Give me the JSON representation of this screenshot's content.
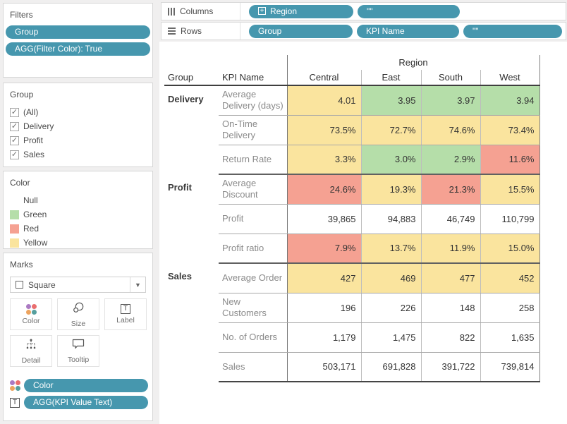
{
  "app": {
    "accent_pill_color": "#4697ae",
    "page_background": "#f0efef"
  },
  "sidebar": {
    "filters": {
      "title": "Filters",
      "pills": [
        "Group",
        "AGG(Filter Color): True"
      ]
    },
    "group_legend": {
      "title": "Group",
      "items": [
        {
          "label": "(All)",
          "checked": true
        },
        {
          "label": "Delivery",
          "checked": true
        },
        {
          "label": "Profit",
          "checked": true
        },
        {
          "label": "Sales",
          "checked": true
        }
      ]
    },
    "color_legend": {
      "title": "Color",
      "items": [
        {
          "label": "Null",
          "swatch": ""
        },
        {
          "label": "Green",
          "swatch": "#b5dea9"
        },
        {
          "label": "Red",
          "swatch": "#f5a192"
        },
        {
          "label": "Yellow",
          "swatch": "#fae49e"
        }
      ]
    },
    "marks": {
      "title": "Marks",
      "mark_type": "Square",
      "buttons": [
        {
          "label": "Color",
          "icon": "color-dots-icon"
        },
        {
          "label": "Size",
          "icon": "size-icon"
        },
        {
          "label": "Label",
          "icon": "label-icon"
        },
        {
          "label": "Detail",
          "icon": "detail-icon"
        },
        {
          "label": "Tooltip",
          "icon": "tooltip-icon"
        }
      ],
      "pills": [
        {
          "icon": "color-dots-icon",
          "label": "Color"
        },
        {
          "icon": "text-icon",
          "label": "AGG(KPI Value Text)"
        }
      ]
    }
  },
  "shelves": {
    "columns": {
      "label": "Columns",
      "pills": [
        {
          "icon": "expand-icon",
          "label": "Region"
        },
        {
          "icon": "",
          "label": "\"\""
        }
      ]
    },
    "rows": {
      "label": "Rows",
      "pills": [
        {
          "icon": "",
          "label": "Group"
        },
        {
          "icon": "",
          "label": "KPI Name"
        },
        {
          "icon": "",
          "label": "\"\""
        }
      ]
    }
  },
  "chart_data": {
    "type": "table",
    "span_header": "Region",
    "corner_headers": [
      "Group",
      "KPI Name"
    ],
    "columns": [
      "Central",
      "East",
      "South",
      "West"
    ],
    "palette": {
      "G": "#b5dea9",
      "Y": "#fae49e",
      "R": "#f5a192",
      "N": "#ffffff"
    },
    "color_names": {
      "G": "Green",
      "Y": "Yellow",
      "R": "Red",
      "N": "Null"
    },
    "groups": [
      {
        "name": "Delivery",
        "rows": [
          {
            "kpi": "Average Delivery (days)",
            "values": [
              "4.01",
              "3.95",
              "3.97",
              "3.94"
            ],
            "colors": [
              "Y",
              "G",
              "G",
              "G"
            ]
          },
          {
            "kpi": "On-Time Delivery",
            "values": [
              "73.5%",
              "72.7%",
              "74.6%",
              "73.4%"
            ],
            "colors": [
              "Y",
              "Y",
              "Y",
              "Y"
            ]
          },
          {
            "kpi": "Return Rate",
            "values": [
              "3.3%",
              "3.0%",
              "2.9%",
              "11.6%"
            ],
            "colors": [
              "Y",
              "G",
              "G",
              "R"
            ]
          }
        ]
      },
      {
        "name": "Profit",
        "rows": [
          {
            "kpi": "Average Discount",
            "values": [
              "24.6%",
              "19.3%",
              "21.3%",
              "15.5%"
            ],
            "colors": [
              "R",
              "Y",
              "R",
              "Y"
            ]
          },
          {
            "kpi": "Profit",
            "values": [
              "39,865",
              "94,883",
              "46,749",
              "110,799"
            ],
            "colors": [
              "N",
              "N",
              "N",
              "N"
            ]
          },
          {
            "kpi": "Profit ratio",
            "values": [
              "7.9%",
              "13.7%",
              "11.9%",
              "15.0%"
            ],
            "colors": [
              "R",
              "Y",
              "Y",
              "Y"
            ]
          }
        ]
      },
      {
        "name": "Sales",
        "rows": [
          {
            "kpi": "Average Order",
            "values": [
              "427",
              "469",
              "477",
              "452"
            ],
            "colors": [
              "Y",
              "Y",
              "Y",
              "Y"
            ]
          },
          {
            "kpi": "New Customers",
            "values": [
              "196",
              "226",
              "148",
              "258"
            ],
            "colors": [
              "N",
              "N",
              "N",
              "N"
            ]
          },
          {
            "kpi": "No. of Orders",
            "values": [
              "1,179",
              "1,475",
              "822",
              "1,635"
            ],
            "colors": [
              "N",
              "N",
              "N",
              "N"
            ]
          },
          {
            "kpi": "Sales",
            "values": [
              "503,171",
              "691,828",
              "391,722",
              "739,814"
            ],
            "colors": [
              "N",
              "N",
              "N",
              "N"
            ]
          }
        ]
      }
    ]
  }
}
